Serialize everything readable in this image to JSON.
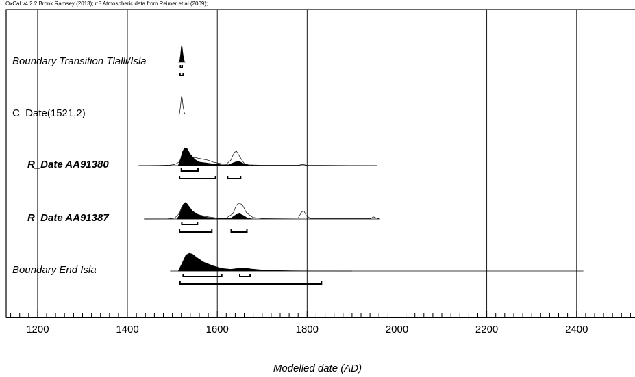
{
  "header": "OxCal v4.2.2 Bronk Ramsey (2013); r:5 Atmospheric data from Reimer et al (2009);",
  "chart_data": {
    "type": "area",
    "xlabel": "Modelled date (AD)",
    "xlim": [
      1130,
      2530
    ],
    "x_ticks": [
      1200,
      1400,
      1600,
      1800,
      2000,
      2200,
      2400
    ],
    "grid": true,
    "rows": [
      {
        "label": "Boundary Transition Tlalli/Isla",
        "style": "italic",
        "baseline": false,
        "posterior": [
          [
            1513,
            0
          ],
          [
            1516,
            0.05
          ],
          [
            1518,
            0.4
          ],
          [
            1520,
            0.95
          ],
          [
            1521,
            1
          ],
          [
            1522,
            0.9
          ],
          [
            1524,
            0.4
          ],
          [
            1527,
            0.05
          ],
          [
            1530,
            0
          ]
        ],
        "hpd": [
          [
            [
              1518,
              1522
            ]
          ],
          [
            [
              1517,
              1524
            ]
          ]
        ]
      },
      {
        "label": "C_Date(1521,2)",
        "style": "plain",
        "baseline": false,
        "prior": [
          [
            1513,
            0
          ],
          [
            1516,
            0.05
          ],
          [
            1518,
            0.4
          ],
          [
            1520,
            0.95
          ],
          [
            1521,
            1
          ],
          [
            1522,
            0.9
          ],
          [
            1524,
            0.4
          ],
          [
            1527,
            0.05
          ],
          [
            1530,
            0
          ]
        ],
        "hpd": []
      },
      {
        "label": "R_Date AA91380",
        "style": "bold-italic",
        "baseline": true,
        "range": [
          1425,
          1955
        ],
        "prior": [
          [
            1425,
            0
          ],
          [
            1470,
            0.01
          ],
          [
            1495,
            0.03
          ],
          [
            1505,
            0.06
          ],
          [
            1515,
            0.2
          ],
          [
            1520,
            0.45
          ],
          [
            1525,
            0.6
          ],
          [
            1532,
            0.55
          ],
          [
            1540,
            0.45
          ],
          [
            1550,
            0.45
          ],
          [
            1560,
            0.4
          ],
          [
            1570,
            0.35
          ],
          [
            1580,
            0.3
          ],
          [
            1590,
            0.2
          ],
          [
            1600,
            0.15
          ],
          [
            1610,
            0.1
          ],
          [
            1620,
            0.08
          ],
          [
            1630,
            0.3
          ],
          [
            1638,
            0.75
          ],
          [
            1643,
            0.8
          ],
          [
            1650,
            0.5
          ],
          [
            1660,
            0.12
          ],
          [
            1670,
            0.04
          ],
          [
            1700,
            0.02
          ],
          [
            1780,
            0.02
          ],
          [
            1790,
            0.06
          ],
          [
            1800,
            0.02
          ],
          [
            1955,
            0
          ]
        ],
        "posterior": [
          [
            1513,
            0
          ],
          [
            1518,
            0.35
          ],
          [
            1522,
            0.75
          ],
          [
            1527,
            1
          ],
          [
            1533,
            0.95
          ],
          [
            1540,
            0.65
          ],
          [
            1550,
            0.35
          ],
          [
            1560,
            0.2
          ],
          [
            1575,
            0.15
          ],
          [
            1590,
            0.1
          ],
          [
            1610,
            0.05
          ],
          [
            1625,
            0.05
          ],
          [
            1640,
            0.2
          ],
          [
            1648,
            0.25
          ],
          [
            1658,
            0.12
          ],
          [
            1670,
            0.02
          ],
          [
            1680,
            0
          ]
        ],
        "hpd": [
          [
            [
              1520,
              1557
            ]
          ],
          [
            [
              1516,
              1596
            ],
            [
              1623,
              1652
            ]
          ]
        ]
      },
      {
        "label": "R_Date AA91387",
        "style": "bold-italic",
        "baseline": true,
        "range": [
          1437,
          1962
        ],
        "prior": [
          [
            1437,
            0
          ],
          [
            1490,
            0.01
          ],
          [
            1505,
            0.05
          ],
          [
            1515,
            0.3
          ],
          [
            1522,
            0.75
          ],
          [
            1527,
            0.9
          ],
          [
            1532,
            0.8
          ],
          [
            1540,
            0.5
          ],
          [
            1550,
            0.3
          ],
          [
            1565,
            0.2
          ],
          [
            1580,
            0.12
          ],
          [
            1600,
            0.05
          ],
          [
            1620,
            0.05
          ],
          [
            1635,
            0.3
          ],
          [
            1642,
            0.75
          ],
          [
            1648,
            0.9
          ],
          [
            1656,
            0.8
          ],
          [
            1665,
            0.35
          ],
          [
            1680,
            0.08
          ],
          [
            1700,
            0.03
          ],
          [
            1780,
            0.05
          ],
          [
            1788,
            0.4
          ],
          [
            1793,
            0.45
          ],
          [
            1798,
            0.2
          ],
          [
            1808,
            0.02
          ],
          [
            1940,
            0.02
          ],
          [
            1948,
            0.12
          ],
          [
            1955,
            0.05
          ],
          [
            1962,
            0
          ]
        ],
        "posterior": [
          [
            1510,
            0
          ],
          [
            1515,
            0.2
          ],
          [
            1520,
            0.55
          ],
          [
            1525,
            0.85
          ],
          [
            1530,
            0.95
          ],
          [
            1536,
            0.75
          ],
          [
            1545,
            0.45
          ],
          [
            1555,
            0.28
          ],
          [
            1565,
            0.16
          ],
          [
            1580,
            0.08
          ],
          [
            1595,
            0.02
          ],
          [
            1630,
            0.05
          ],
          [
            1642,
            0.25
          ],
          [
            1650,
            0.3
          ],
          [
            1658,
            0.2
          ],
          [
            1668,
            0.05
          ],
          [
            1680,
            0
          ]
        ],
        "hpd": [
          [
            [
              1521,
              1556
            ]
          ],
          [
            [
              1516,
              1588
            ],
            [
              1631,
              1666
            ]
          ]
        ]
      },
      {
        "label": "Boundary End Isla",
        "style": "italic",
        "baseline": true,
        "range": [
          1495,
          2415
        ],
        "posterior": [
          [
            1513,
            0
          ],
          [
            1520,
            0.35
          ],
          [
            1530,
            0.9
          ],
          [
            1538,
            1
          ],
          [
            1545,
            0.95
          ],
          [
            1555,
            0.75
          ],
          [
            1570,
            0.5
          ],
          [
            1590,
            0.3
          ],
          [
            1610,
            0.15
          ],
          [
            1630,
            0.1
          ],
          [
            1650,
            0.16
          ],
          [
            1660,
            0.18
          ],
          [
            1675,
            0.12
          ],
          [
            1700,
            0.06
          ],
          [
            1730,
            0.03
          ],
          [
            1770,
            0.015
          ],
          [
            1830,
            0.005
          ],
          [
            1900,
            0
          ]
        ],
        "hpd": [
          [
            [
              1524,
              1610
            ],
            [
              1650,
              1673
            ]
          ],
          [
            [
              1517,
              1832
            ]
          ]
        ]
      }
    ]
  }
}
